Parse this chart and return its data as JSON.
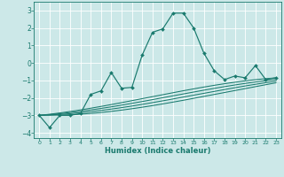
{
  "title": "",
  "xlabel": "Humidex (Indice chaleur)",
  "bg_color": "#cce8e8",
  "line_color": "#1a7a6e",
  "grid_color": "#ffffff",
  "xlim": [
    -0.5,
    23.5
  ],
  "ylim": [
    -4.3,
    3.5
  ],
  "xticks": [
    0,
    1,
    2,
    3,
    4,
    5,
    6,
    7,
    8,
    9,
    10,
    11,
    12,
    13,
    14,
    15,
    16,
    17,
    18,
    19,
    20,
    21,
    22,
    23
  ],
  "yticks": [
    -4,
    -3,
    -2,
    -1,
    0,
    1,
    2,
    3
  ],
  "main_line": {
    "x": [
      0,
      1,
      2,
      3,
      4,
      5,
      6,
      7,
      8,
      9,
      10,
      11,
      12,
      13,
      14,
      15,
      16,
      17,
      18,
      19,
      20,
      21,
      22,
      23
    ],
    "y": [
      -3.0,
      -3.7,
      -3.0,
      -3.0,
      -2.9,
      -1.8,
      -1.6,
      -0.55,
      -1.45,
      -1.4,
      0.45,
      1.75,
      1.95,
      2.85,
      2.85,
      2.0,
      0.55,
      -0.45,
      -0.95,
      -0.75,
      -0.85,
      -0.15,
      -0.95,
      -0.85
    ]
  },
  "smooth_lines": [
    [
      -3.0,
      -0.85
    ],
    [
      -3.0,
      -0.95
    ],
    [
      -3.0,
      -1.05
    ],
    [
      -3.0,
      -1.15
    ]
  ]
}
